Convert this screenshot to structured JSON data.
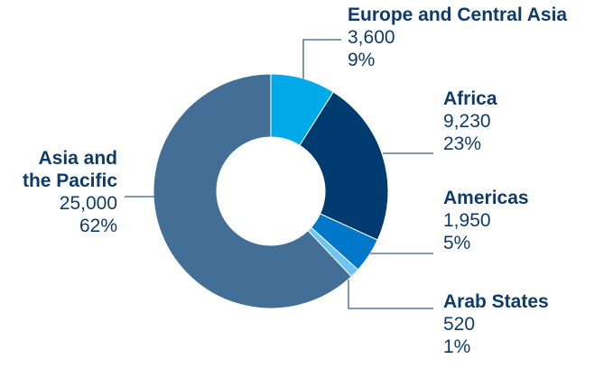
{
  "chart_data": {
    "type": "pie",
    "donut": true,
    "slices": [
      {
        "name": "Europe and Central Asia",
        "value": 3600,
        "value_label": "3,600",
        "percent_label": "9%",
        "color": "#00a9e8"
      },
      {
        "name": "Africa",
        "value": 9230,
        "value_label": "9,230",
        "percent_label": "23%",
        "color": "#003b6f"
      },
      {
        "name": "Americas",
        "value": 1950,
        "value_label": "1,950",
        "percent_label": "5%",
        "color": "#0077c8"
      },
      {
        "name": "Arab States",
        "value": 520,
        "value_label": "520",
        "percent_label": "1%",
        "color": "#6ec6f0"
      },
      {
        "name": "Asia and the Pacific",
        "value": 25000,
        "value_label": "25,000",
        "percent_label": "62%",
        "color": "#436f96"
      }
    ],
    "label_lines": [
      [
        "Europe and Central Asia"
      ],
      [
        "Africa"
      ],
      [
        "Americas"
      ],
      [
        "Arab States"
      ],
      [
        "Asia and",
        "the Pacific"
      ]
    ],
    "label_color": "#0f3b6b",
    "leader_color": "#3a5f85"
  }
}
